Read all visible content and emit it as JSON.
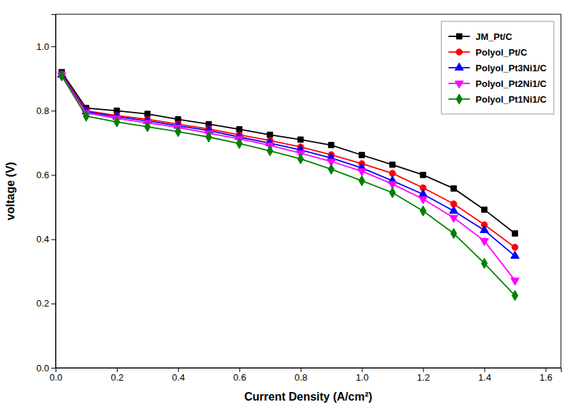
{
  "chart_data": {
    "type": "line",
    "x_label": "Current Density (A/cm²)",
    "y_label": "voltage (V)",
    "x": [
      0.02,
      0.1,
      0.2,
      0.3,
      0.4,
      0.5,
      0.6,
      0.7,
      0.8,
      0.9,
      1.0,
      1.1,
      1.2,
      1.3,
      1.4,
      1.5
    ],
    "series": [
      {
        "name": "JM_Pt/C",
        "color": "black",
        "marker": "square",
        "values": [
          0.92,
          0.808,
          0.8,
          0.79,
          0.773,
          0.758,
          0.742,
          0.725,
          0.71,
          0.693,
          0.662,
          0.632,
          0.6,
          0.558,
          0.492,
          0.418
        ]
      },
      {
        "name": "Polyol_Pt/C",
        "color": "red",
        "marker": "circle",
        "values": [
          0.915,
          0.8,
          0.785,
          0.773,
          0.758,
          0.743,
          0.725,
          0.707,
          0.687,
          0.663,
          0.635,
          0.605,
          0.56,
          0.51,
          0.445,
          0.375
        ]
      },
      {
        "name": "Polyol_Pt3Ni1/C",
        "color": "blue",
        "marker": "triangle-up",
        "values": [
          0.912,
          0.797,
          0.781,
          0.768,
          0.753,
          0.738,
          0.718,
          0.699,
          0.678,
          0.653,
          0.622,
          0.582,
          0.54,
          0.488,
          0.428,
          0.348
        ]
      },
      {
        "name": "Polyol_Pt2Ni1/C",
        "color": "magenta",
        "marker": "triangle-down",
        "values": [
          0.91,
          0.793,
          0.776,
          0.762,
          0.748,
          0.73,
          0.712,
          0.692,
          0.668,
          0.642,
          0.612,
          0.572,
          0.525,
          0.467,
          0.395,
          0.272
        ]
      },
      {
        "name": "Polyol_Pt1Ni1/C",
        "color": "green",
        "marker": "diamond",
        "values": [
          0.908,
          0.783,
          0.765,
          0.75,
          0.735,
          0.718,
          0.698,
          0.675,
          0.65,
          0.618,
          0.582,
          0.545,
          0.488,
          0.418,
          0.325,
          0.225
        ]
      }
    ],
    "xlim": [
      0.0,
      1.65
    ],
    "ylim": [
      0.0,
      1.1
    ],
    "xticks": [
      {
        "value": 0,
        "label": "0.0"
      },
      0.2,
      0.4,
      0.6,
      0.8,
      {
        "value": 1,
        "label": "1.0"
      },
      1.2,
      1.4,
      1.6
    ],
    "yticks": [
      {
        "value": 0,
        "label": "0.0"
      },
      0.2,
      0.4,
      0.6,
      0.8,
      {
        "value": 1,
        "label": "1.0"
      }
    ],
    "grid": false,
    "legend": "upper right"
  }
}
